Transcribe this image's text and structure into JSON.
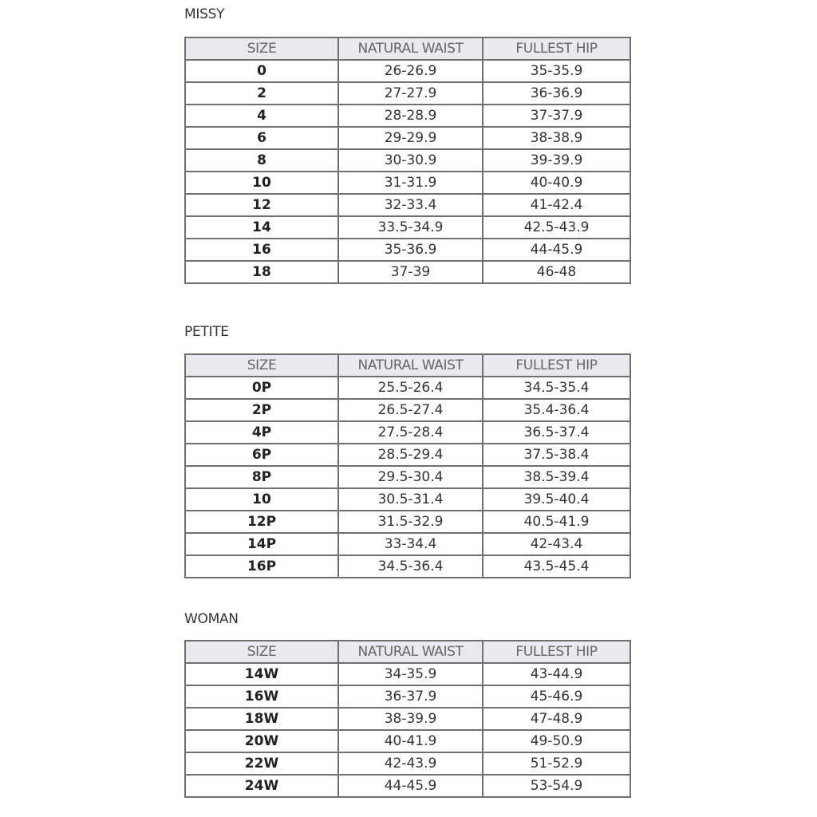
{
  "headers": [
    "SIZE",
    "NATURAL WAIST",
    "FULLEST HIP"
  ],
  "header_bg": "#e9e9ee",
  "sections": [
    {
      "label": "MISSY",
      "rows": [
        [
          "0",
          "26-26.9",
          "35-35.9"
        ],
        [
          "2",
          "27-27.9",
          "36-36.9"
        ],
        [
          "4",
          "28-28.9",
          "37-37.9"
        ],
        [
          "6",
          "29-29.9",
          "38-38.9"
        ],
        [
          "8",
          "30-30.9",
          "39-39.9"
        ],
        [
          "10",
          "31-31.9",
          "40-40.9"
        ],
        [
          "12",
          "32-33.4",
          "41-42.4"
        ],
        [
          "14",
          "33.5-34.9",
          "42.5-43.9"
        ],
        [
          "16",
          "35-36.9",
          "44-45.9"
        ],
        [
          "18",
          "37-39",
          "46-48"
        ]
      ]
    },
    {
      "label": "PETITE",
      "rows": [
        [
          "0P",
          "25.5-26.4",
          "34.5-35.4"
        ],
        [
          "2P",
          "26.5-27.4",
          "35.4-36.4"
        ],
        [
          "4P",
          "27.5-28.4",
          "36.5-37.4"
        ],
        [
          "6P",
          "28.5-29.4",
          "37.5-38.4"
        ],
        [
          "8P",
          "29.5-30.4",
          "38.5-39.4"
        ],
        [
          "10",
          "30.5-31.4",
          "39.5-40.4"
        ],
        [
          "12P",
          "31.5-32.9",
          "40.5-41.9"
        ],
        [
          "14P",
          "33-34.4",
          "42-43.4"
        ],
        [
          "16P",
          "34.5-36.4",
          "43.5-45.4"
        ]
      ]
    },
    {
      "label": "WOMAN",
      "rows": [
        [
          "14W",
          "34-35.9",
          "43-44.9"
        ],
        [
          "16W",
          "36-37.9",
          "45-46.9"
        ],
        [
          "18W",
          "38-39.9",
          "47-48.9"
        ],
        [
          "20W",
          "40-41.9",
          "49-50.9"
        ],
        [
          "22W",
          "42-43.9",
          "51-52.9"
        ],
        [
          "24W",
          "44-45.9",
          "53-54.9"
        ]
      ]
    }
  ]
}
